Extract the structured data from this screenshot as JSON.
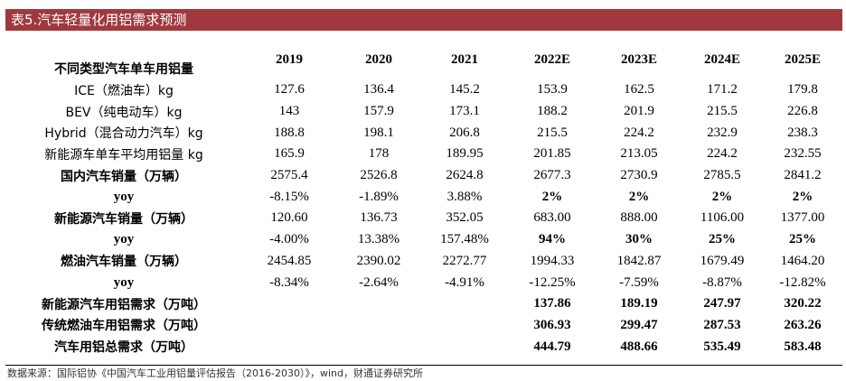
{
  "title": "表5.汽车轻量化用铝需求预测",
  "header": {
    "label": "不同类型汽车单车用铝量",
    "years": [
      "2019",
      "2020",
      "2021",
      "2022E",
      "2023E",
      "2024E",
      "2025E"
    ]
  },
  "rows": [
    {
      "label": "ICE（燃油车）kg",
      "values": [
        "127.6",
        "136.4",
        "145.2",
        "153.9",
        "162.5",
        "171.2",
        "179.8"
      ]
    },
    {
      "label": "BEV（纯电动车）kg",
      "values": [
        "143",
        "157.9",
        "173.1",
        "188.2",
        "201.9",
        "215.5",
        "226.8"
      ]
    },
    {
      "label": "Hybrid（混合动力汽车）kg",
      "values": [
        "188.8",
        "198.1",
        "206.8",
        "215.5",
        "224.2",
        "232.9",
        "238.3"
      ]
    },
    {
      "label": "新能源车单车平均用铝量 kg",
      "values": [
        "165.9",
        "178",
        "189.95",
        "201.85",
        "213.05",
        "224.2",
        "232.55"
      ]
    },
    {
      "label": "国内汽车销量（万辆）",
      "values": [
        "2575.4",
        "2526.8",
        "2624.8",
        "2677.3",
        "2730.9",
        "2785.5",
        "2841.2"
      ]
    },
    {
      "label": "yoy",
      "values": [
        "-8.15%",
        "-1.89%",
        "3.88%",
        "2%",
        "2%",
        "2%",
        "2%"
      ]
    },
    {
      "label": "新能源汽车销量（万辆）",
      "values": [
        "120.60",
        "136.73",
        "352.05",
        "683.00",
        "888.00",
        "1106.00",
        "1377.00"
      ]
    },
    {
      "label": "yoy",
      "values": [
        "-4.00%",
        "13.38%",
        "157.48%",
        "94%",
        "30%",
        "25%",
        "25%"
      ]
    },
    {
      "label": "燃油汽车销量（万辆）",
      "values": [
        "2454.85",
        "2390.02",
        "2272.77",
        "1994.33",
        "1842.87",
        "1679.49",
        "1464.20"
      ]
    },
    {
      "label": "yoy",
      "values": [
        "-8.34%",
        "-2.64%",
        "-4.91%",
        "-12.25%",
        "-7.59%",
        "-8.87%",
        "-12.82%"
      ]
    },
    {
      "label": "新能源汽车用铝需求（万吨）",
      "values": [
        "",
        "",
        "",
        "137.86",
        "189.19",
        "247.97",
        "320.22"
      ]
    },
    {
      "label": "传统燃油车用铝需求（万吨）",
      "values": [
        "",
        "",
        "",
        "306.93",
        "299.47",
        "287.53",
        "263.26"
      ]
    },
    {
      "label": "汽车用铝总需求（万吨）",
      "values": [
        "",
        "",
        "",
        "444.79",
        "488.66",
        "535.49",
        "583.48"
      ]
    }
  ],
  "source": "数据来源：国际铝协《中国汽车工业用铝量评估报告（2016-2030）》，wind，财通证券研究所",
  "colors": {
    "title_bar": "#a0393d"
  }
}
